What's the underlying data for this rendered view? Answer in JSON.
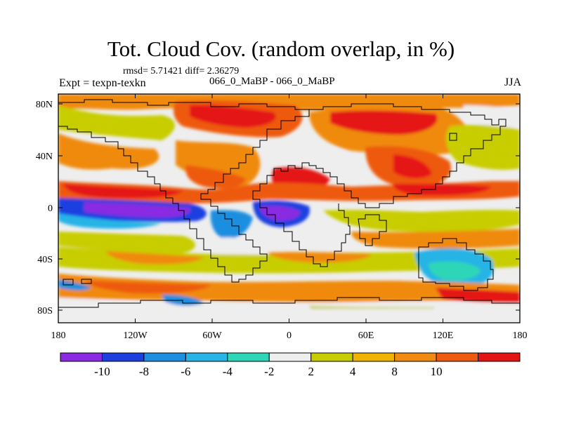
{
  "title": "Tot. Cloud Cov. (random overlap, in %)",
  "stats": "rmsd= 5.71421 diff= 2.36279",
  "expt": "Expt = texpn-texkn",
  "center_label": "066_0_MaBP - 066_0_MaBP",
  "season": "JJA",
  "lon_ticks": [
    "180",
    "120W",
    "60W",
    "0",
    "60E",
    "120E",
    "180"
  ],
  "lat_ticks": [
    "80N",
    "40N",
    "0",
    "40S",
    "80S"
  ],
  "colorbar": {
    "colors": [
      "#8a2be2",
      "#1e3fe0",
      "#1e8ee0",
      "#28b4e6",
      "#2ed6b8",
      "#eeeeee",
      "#c8cd00",
      "#f0b400",
      "#f08a10",
      "#ee5a10",
      "#e41414"
    ],
    "labels": [
      "-10",
      "-8",
      "-6",
      "-4",
      "-2",
      "2",
      "4",
      "8",
      "10"
    ]
  },
  "colors": {
    "land_outline": "#000000",
    "background": "#ffffff"
  }
}
